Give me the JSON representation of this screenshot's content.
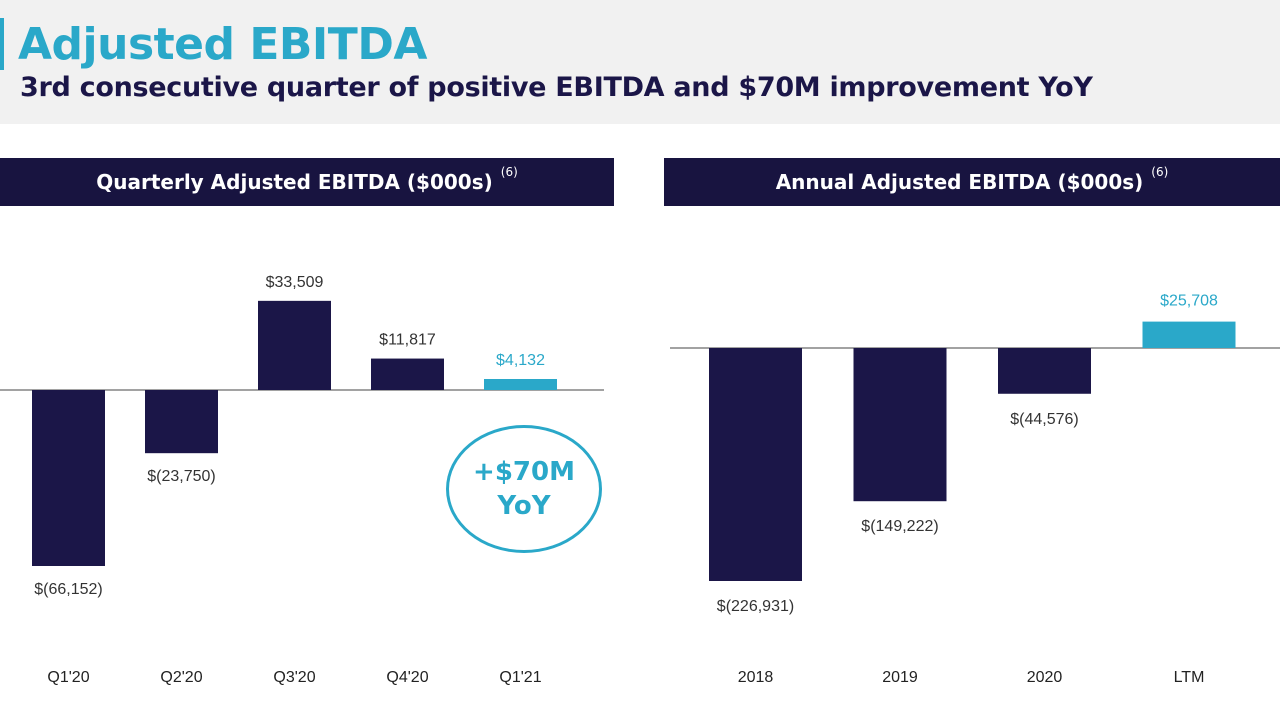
{
  "header": {
    "title": "Adjusted EBITDA",
    "subtitle": "3rd consecutive quarter of positive EBITDA and $70M improvement YoY"
  },
  "callout": {
    "line1": "+$70M",
    "line2": "YoY"
  },
  "colors": {
    "navy": "#1b1648",
    "teal": "#2aa8c9"
  },
  "chart_data": [
    {
      "type": "bar",
      "title": "Quarterly Adjusted EBITDA ($000s)",
      "title_note": "(6)",
      "categories": [
        "Q1'20",
        "Q2'20",
        "Q3'20",
        "Q4'20",
        "Q1'21"
      ],
      "values": [
        -66152,
        -23750,
        33509,
        11817,
        4132
      ],
      "labels": [
        "$(66,152)",
        "$(23,750)",
        "$33,509",
        "$11,817",
        "$4,132"
      ],
      "highlight": [
        false,
        false,
        false,
        false,
        true
      ],
      "ylim": [
        -80000,
        50000
      ]
    },
    {
      "type": "bar",
      "title": "Annual Adjusted EBITDA ($000s)",
      "title_note": "(6)",
      "categories": [
        "2018",
        "2019",
        "2020",
        "LTM"
      ],
      "values": [
        -226931,
        -149222,
        -44576,
        25708
      ],
      "labels": [
        "$(226,931)",
        "$(149,222)",
        "$(44,576)",
        "$25,708"
      ],
      "highlight": [
        false,
        false,
        false,
        true
      ],
      "ylim": [
        -260000,
        60000
      ]
    }
  ]
}
